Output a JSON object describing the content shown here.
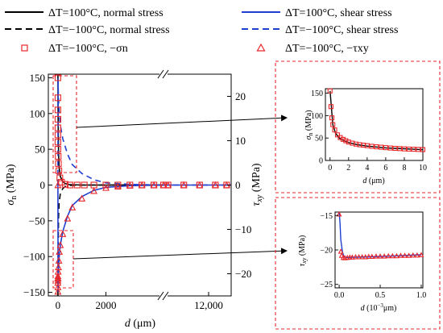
{
  "legend": [
    {
      "label": "ΔT=100°C, normal stress",
      "color": "#000000",
      "dash": "solid",
      "marker": ""
    },
    {
      "label": "ΔT=−100°C, normal stress",
      "color": "#000000",
      "dash": "dashed",
      "marker": ""
    },
    {
      "label": "ΔT=−100°C, −σn",
      "color": "#e8262a",
      "dash": "",
      "marker": "square"
    },
    {
      "label": "ΔT=100°C, shear stress",
      "color": "#1f3fd0",
      "dash": "solid",
      "marker": ""
    },
    {
      "label": "ΔT=−100°C, shear stress",
      "color": "#1f3fd0",
      "dash": "dashed",
      "marker": ""
    },
    {
      "label": "ΔT=−100°C, −τxy",
      "color": "#e8262a",
      "dash": "",
      "marker": "triangle"
    }
  ],
  "colors": {
    "normal": "#000000",
    "shear": "#1f3fd0",
    "marker": "#e8262a",
    "box": "#e8262a"
  },
  "chart_data": [
    {
      "type": "line",
      "xlabel": "d (μm)",
      "ylabel_left": "σn (MPa)",
      "ylabel_right": "τxy (MPa)",
      "x_ticks": [
        "0",
        "2000",
        "12,000"
      ],
      "x_segments": [
        [
          -400,
          4400
        ],
        [
          10000,
          13000
        ]
      ],
      "y_left_ticks": [
        "150",
        "100",
        "50",
        "0",
        "−50",
        "−100",
        "−150"
      ],
      "y_left_range": [
        -155,
        155
      ],
      "y_right_ticks": [
        "20",
        "10",
        "0",
        "−10",
        "−20"
      ],
      "y_right_range": [
        -25,
        25
      ],
      "series": [
        {
          "name": "ΔT=100°C, normal stress",
          "axis": "left",
          "style": "solid",
          "color": "#000000",
          "x": [
            0,
            10,
            25,
            50,
            100,
            200,
            300,
            500,
            1000,
            2000,
            4400
          ],
          "y": [
            155,
            90,
            45,
            25,
            12,
            5,
            2,
            0.5,
            0,
            0,
            0
          ]
        },
        {
          "name": "ΔT=−100°C, normal stress",
          "axis": "left",
          "style": "dashed",
          "color": "#000000",
          "x": [
            0,
            10,
            25,
            50,
            100,
            200,
            300,
            500,
            1000,
            2000,
            4400
          ],
          "y": [
            -155,
            -90,
            -45,
            -25,
            -12,
            -5,
            -2,
            -0.5,
            0,
            0,
            0
          ]
        },
        {
          "name": "ΔT=100°C, shear stress",
          "axis": "right",
          "style": "solid",
          "color": "#1f3fd0",
          "x": [
            0,
            5,
            20,
            50,
            100,
            200,
            400,
            600,
            1000,
            1500,
            2000,
            3000,
            4400,
            10000,
            13000
          ],
          "y": [
            0,
            -24,
            -20,
            -16.5,
            -13.5,
            -10.5,
            -7,
            -4.6,
            -2.6,
            -1.2,
            -0.5,
            -0.15,
            0,
            0,
            0
          ]
        },
        {
          "name": "ΔT=−100°C, shear stress",
          "axis": "right",
          "style": "dashed",
          "color": "#1f3fd0",
          "x": [
            0,
            5,
            20,
            50,
            100,
            200,
            400,
            600,
            1000,
            1500,
            2000,
            3000,
            4400,
            10000,
            13000
          ],
          "y": [
            0,
            24,
            20,
            16.5,
            13.5,
            10.5,
            7,
            4.6,
            2.6,
            1.2,
            0.5,
            0.15,
            0,
            0,
            0
          ]
        },
        {
          "name": "ΔT=−100°C, −σn",
          "axis": "left",
          "style": "markers",
          "marker": "square",
          "color": "#e8262a",
          "x": [
            0,
            0,
            0,
            0,
            0,
            0,
            0,
            0,
            10,
            20,
            40,
            80,
            150,
            300,
            500,
            800,
            1100,
            1500,
            2000,
            2500,
            3000,
            3500,
            4000,
            4400,
            10200,
            10900,
            11600,
            12300,
            12800
          ],
          "y": [
            150,
            122,
            105,
            92,
            80,
            70,
            60,
            50,
            40,
            30,
            20,
            10,
            4,
            1,
            0,
            0,
            0,
            0,
            0,
            0,
            0,
            0,
            0,
            0,
            0,
            0,
            0,
            0,
            0
          ]
        },
        {
          "name": "ΔT=−100°C, −τxy",
          "axis": "right",
          "style": "markers",
          "marker": "triangle",
          "color": "#e8262a",
          "x": [
            0,
            0,
            0,
            0,
            0,
            0,
            0,
            0,
            0,
            0,
            10,
            20,
            40,
            60,
            100,
            200,
            400,
            600,
            1000,
            1500,
            2000,
            2500,
            3000,
            3500,
            4000,
            4400,
            10200,
            10900,
            11600,
            12300,
            12800
          ],
          "y": [
            0,
            -24,
            -23,
            -22,
            -21.5,
            -21,
            -21,
            -21,
            -21,
            -20.5,
            -19.5,
            -18.5,
            -17,
            -15,
            -13.5,
            -11,
            -7.5,
            -5,
            -3,
            -1.3,
            -0.6,
            -0.3,
            -0.1,
            0,
            0,
            0,
            0,
            0,
            0,
            0,
            0
          ]
        }
      ]
    },
    {
      "type": "line",
      "xlabel": "d (μm)",
      "ylabel": "σn (MPa)",
      "x_ticks": [
        "0",
        "2",
        "4",
        "6",
        "8",
        "10"
      ],
      "y_ticks": [
        "150",
        "100",
        "50",
        "0"
      ],
      "xlim": [
        -0.5,
        10
      ],
      "ylim": [
        0,
        160
      ],
      "series": [
        {
          "name": "ΔT=100°C, normal stress",
          "style": "solid",
          "color": "#000000",
          "x": [
            0,
            0.3,
            0.6,
            1,
            1.5,
            2,
            3,
            4,
            5,
            6,
            7,
            8,
            9,
            10
          ],
          "y": [
            155,
            80,
            60,
            50,
            44,
            40,
            35,
            32,
            30,
            28,
            27,
            26,
            25,
            24
          ]
        },
        {
          "name": "ΔT=−100°C, −σn",
          "style": "markers",
          "marker": "square",
          "color": "#e8262a",
          "x": [
            0,
            0.1,
            0.2,
            0.3,
            0.5,
            0.8,
            1.1,
            1.4,
            1.7,
            2,
            2.4,
            2.8,
            3.2,
            3.6,
            4,
            4.5,
            5,
            5.5,
            6,
            6.5,
            7,
            7.5,
            8,
            8.5,
            9,
            9.5,
            10
          ],
          "y": [
            155,
            120,
            95,
            80,
            68,
            57,
            51,
            47,
            44,
            41,
            38.5,
            36.5,
            35,
            34,
            33,
            31.5,
            30.5,
            29.5,
            28.5,
            27.7,
            27,
            26.4,
            25.8,
            25.3,
            25,
            24.6,
            24.2
          ]
        }
      ]
    },
    {
      "type": "line",
      "xlabel": "d (10⁻³μm)",
      "ylabel": "τxy (MPa)",
      "x_ticks": [
        "0.0",
        "0.5",
        "1.0"
      ],
      "y_ticks": [
        "−15",
        "−20",
        "−25"
      ],
      "xlim": [
        -0.05,
        1.02
      ],
      "ylim": [
        -25.5,
        -14.5
      ],
      "series": [
        {
          "name": "ΔT=100°C, shear stress",
          "style": "solid",
          "color": "#1f3fd0",
          "x": [
            0,
            0.01,
            0.02,
            0.04,
            0.06,
            0.1,
            0.2,
            0.4,
            0.6,
            0.8,
            1.0
          ],
          "y": [
            -14.5,
            -16,
            -18.5,
            -20.3,
            -21,
            -21.1,
            -21.05,
            -21,
            -20.9,
            -20.8,
            -20.7
          ]
        },
        {
          "name": "ΔT=−100°C, −τxy",
          "style": "markers",
          "marker": "triangle",
          "color": "#e8262a",
          "x": [
            0,
            0.02,
            0.03,
            0.05,
            0.07,
            0.1,
            0.13,
            0.16,
            0.2,
            0.24,
            0.28,
            0.32,
            0.36,
            0.4,
            0.45,
            0.5,
            0.55,
            0.6,
            0.65,
            0.7,
            0.75,
            0.8,
            0.85,
            0.9,
            0.95,
            1.0
          ],
          "y": [
            -14.8,
            -20.2,
            -20.8,
            -21.1,
            -21.15,
            -21.1,
            -21.05,
            -21.05,
            -21.0,
            -21.0,
            -21.0,
            -21.0,
            -20.95,
            -20.95,
            -20.9,
            -20.9,
            -20.9,
            -20.85,
            -20.85,
            -20.85,
            -20.8,
            -20.8,
            -20.8,
            -20.75,
            -20.75,
            -20.7
          ]
        }
      ]
    }
  ]
}
